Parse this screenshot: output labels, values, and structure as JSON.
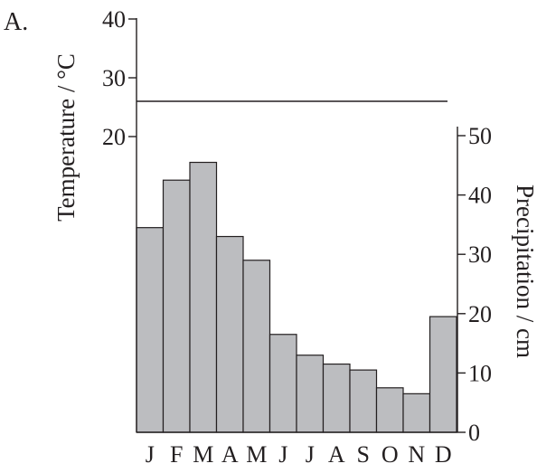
{
  "panel_label": "A.",
  "chart_data": {
    "type": "bar",
    "categories": [
      "J",
      "F",
      "M",
      "A",
      "M",
      "J",
      "J",
      "A",
      "S",
      "O",
      "N",
      "D"
    ],
    "series": [
      {
        "axis": "right",
        "color": "#bcbdc0",
        "values": [
          34.5,
          42.5,
          45.5,
          33.0,
          29.0,
          16.5,
          13.0,
          11.5,
          10.5,
          7.5,
          6.5,
          19.5
        ]
      },
      {
        "type": "line",
        "axis": "left",
        "color": "#231f20",
        "values": [
          26,
          26,
          26,
          26,
          26,
          26,
          26,
          26,
          26,
          26,
          26,
          26
        ]
      }
    ],
    "y_left": {
      "label": "Temperature / °C",
      "ticks": [
        20,
        30,
        40
      ]
    },
    "y_right": {
      "label": "Precipitation / cm",
      "ylim": [
        0,
        50
      ],
      "ticks": [
        0,
        10,
        20,
        30,
        40,
        50
      ]
    },
    "bar_color": "#bcbdc0",
    "axis_color": "#231f20"
  }
}
